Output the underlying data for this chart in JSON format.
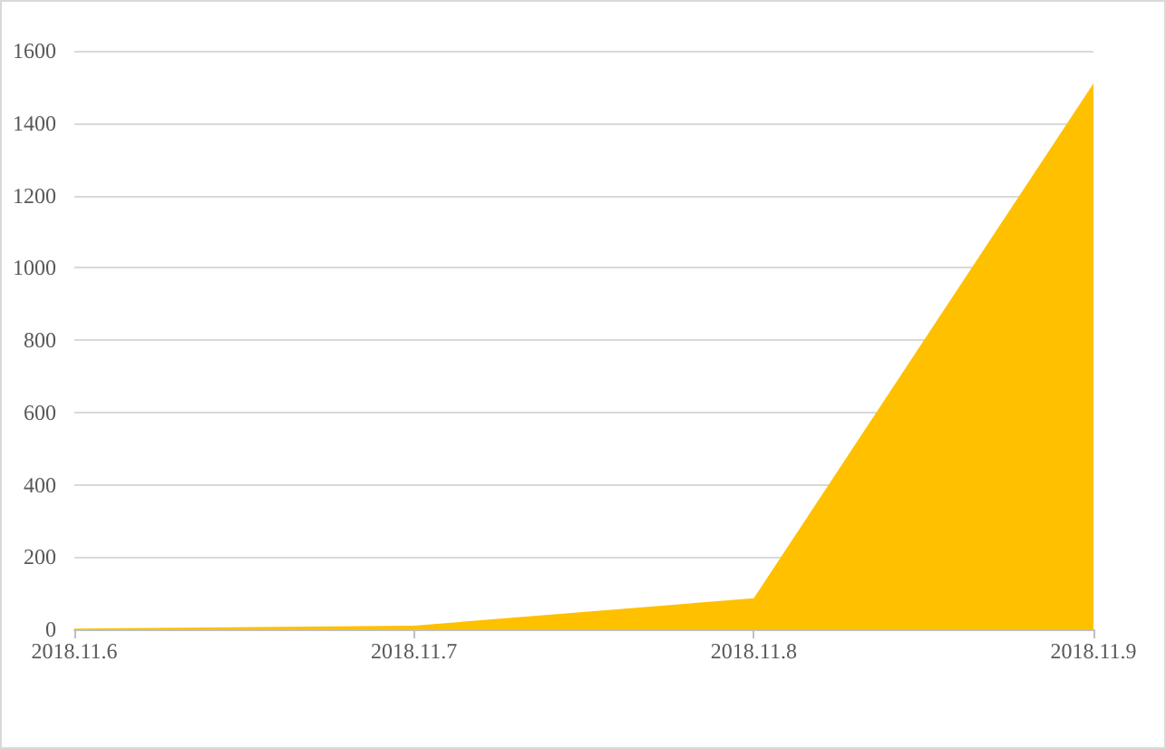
{
  "chart_data": {
    "type": "area",
    "categories": [
      "2018.11.6",
      "2018.11.7",
      "2018.11.8",
      "2018.11.9"
    ],
    "series": [
      {
        "color": "#ffc000",
        "values": [
          2,
          10,
          86,
          1510
        ]
      }
    ],
    "ylim": [
      0,
      1600
    ],
    "yticks": [
      0,
      200,
      400,
      600,
      800,
      1000,
      1200,
      1400,
      1600
    ],
    "grid": "y",
    "marker": "none"
  }
}
